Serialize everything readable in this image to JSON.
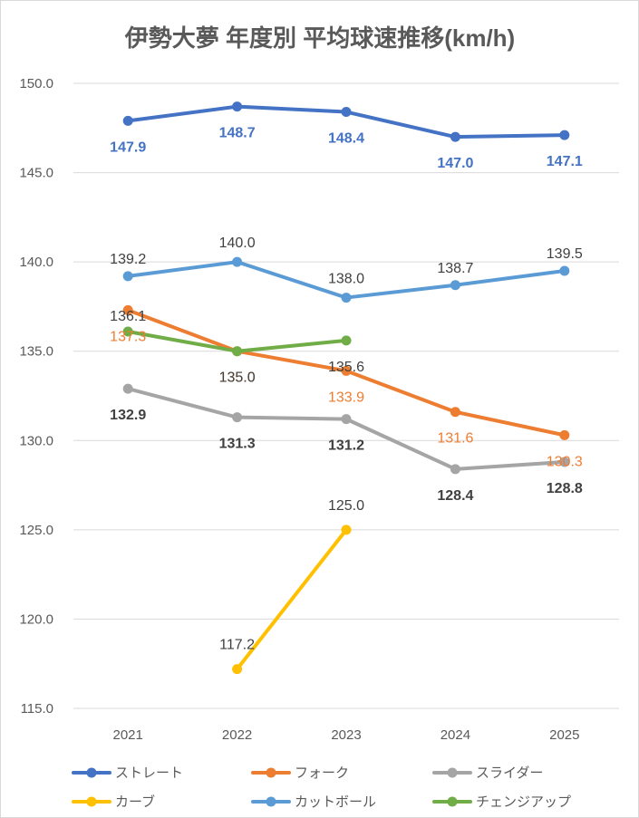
{
  "chart_data": {
    "type": "line",
    "title": "伊勢大夢 年度別 平均球速推移(km/h)",
    "xlabel": "",
    "ylabel": "",
    "categories": [
      "2021",
      "2022",
      "2023",
      "2024",
      "2025"
    ],
    "ylim": [
      115.0,
      150.0
    ],
    "yticks": [
      "150.0",
      "145.0",
      "140.0",
      "135.0",
      "130.0",
      "125.0",
      "120.0",
      "115.0"
    ],
    "grid": "horizontal",
    "legend_position": "bottom",
    "series": [
      {
        "name": "ストレート",
        "color": "#4472C4",
        "label_color": "#4472C4",
        "label_bold": true,
        "values": [
          147.9,
          148.7,
          148.4,
          147.0,
          147.1
        ],
        "labels": [
          "147.9",
          "148.7",
          "148.4",
          "147.0",
          "147.1"
        ]
      },
      {
        "name": "フォーク",
        "color": "#ED7D31",
        "label_color": "#ED7D31",
        "label_bold": false,
        "values": [
          137.3,
          135.0,
          133.9,
          131.6,
          130.3
        ],
        "labels": [
          "137.3",
          "135.0",
          "133.9",
          "131.6",
          "130.3"
        ]
      },
      {
        "name": "スライダー",
        "color": "#A5A5A5",
        "label_color": "#404040",
        "label_bold": true,
        "values": [
          132.9,
          131.3,
          131.2,
          128.4,
          128.8
        ],
        "labels": [
          "132.9",
          "131.3",
          "131.2",
          "128.4",
          "128.8"
        ]
      },
      {
        "name": "カーブ",
        "color": "#FFC000",
        "label_color": "#404040",
        "label_bold": false,
        "values": [
          null,
          117.2,
          125.0,
          null,
          null
        ],
        "labels": [
          null,
          "117.2",
          "125.0",
          null,
          null
        ]
      },
      {
        "name": "カットボール",
        "color": "#5B9BD5",
        "label_color": "#404040",
        "label_bold": false,
        "values": [
          139.2,
          140.0,
          138.0,
          138.7,
          139.5
        ],
        "labels": [
          "139.2",
          "140.0",
          "138.0",
          "138.7",
          "139.5"
        ]
      },
      {
        "name": "チェンジアップ",
        "color": "#70AD47",
        "label_color": "#404040",
        "label_bold": false,
        "values": [
          136.1,
          135.0,
          135.6,
          null,
          null
        ],
        "labels": [
          "136.1",
          "135.0",
          "135.6",
          null,
          null
        ]
      }
    ]
  }
}
